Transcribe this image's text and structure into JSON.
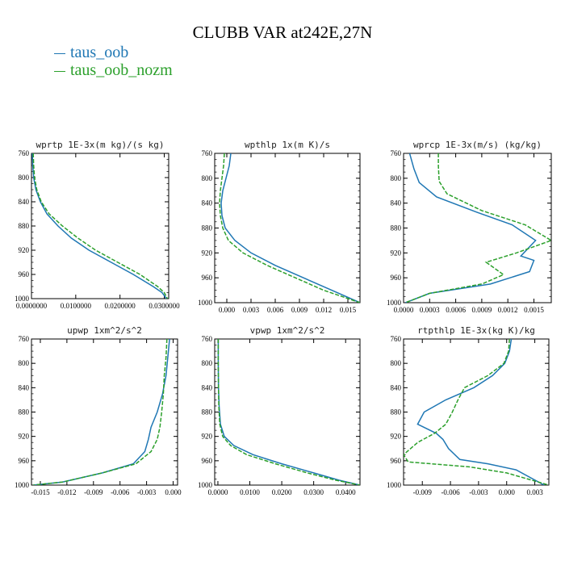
{
  "title": "CLUBB VAR at242E,27N",
  "legend": [
    {
      "label": "taus_oob",
      "color": "#1f77b4"
    },
    {
      "label": "taus_oob_nozm",
      "color": "#2ca02c"
    }
  ],
  "chart_data": [
    {
      "type": "line",
      "title": "wprtp  1E-3x(m kg)/(s kg)",
      "xlim": [
        0,
        0.031
      ],
      "ylim": [
        760,
        1000
      ],
      "y_reversed": true,
      "xticks": [
        0,
        0.01,
        0.02,
        0.03
      ],
      "xtick_labels": [
        "0.0000000",
        "0.0100000",
        "0.0200000",
        "0.0300000"
      ],
      "yticks": [
        760,
        800,
        840,
        880,
        920,
        960,
        1000
      ],
      "series": [
        {
          "name": "taus_oob",
          "x": [
            0.0002,
            0.0003,
            0.0005,
            0.001,
            0.002,
            0.0035,
            0.006,
            0.009,
            0.013,
            0.018,
            0.023,
            0.0275,
            0.0295,
            0.0305
          ],
          "y": [
            760,
            780,
            800,
            820,
            840,
            860,
            880,
            900,
            920,
            940,
            960,
            980,
            990,
            1000
          ]
        },
        {
          "name": "taus_oob_nozm",
          "x": [
            0.0004,
            0.0005,
            0.0007,
            0.0012,
            0.0022,
            0.004,
            0.007,
            0.0105,
            0.0145,
            0.0195,
            0.0245,
            0.0285,
            0.03,
            0.0307
          ],
          "y": [
            760,
            780,
            800,
            820,
            840,
            860,
            880,
            900,
            920,
            940,
            960,
            980,
            990,
            1000
          ]
        }
      ]
    },
    {
      "type": "line",
      "title": "wpthlp  1x(m K)/s",
      "xlim": [
        -0.0015,
        0.0165
      ],
      "ylim": [
        760,
        1000
      ],
      "y_reversed": true,
      "xticks": [
        0,
        0.003,
        0.006,
        0.009,
        0.012,
        0.015
      ],
      "xtick_labels": [
        "0.000",
        "0.003",
        "0.006",
        "0.009",
        "0.012",
        "0.015"
      ],
      "yticks": [
        760,
        800,
        840,
        880,
        920,
        960,
        1000
      ],
      "series": [
        {
          "name": "taus_oob",
          "x": [
            0.0005,
            0.0003,
            -0.0001,
            -0.0005,
            -0.0007,
            -0.0006,
            -0.0002,
            0.001,
            0.003,
            0.006,
            0.0095,
            0.013,
            0.0165
          ],
          "y": [
            760,
            780,
            800,
            820,
            840,
            860,
            880,
            900,
            920,
            940,
            960,
            980,
            1000
          ]
        },
        {
          "name": "taus_oob_nozm",
          "x": [
            -0.0003,
            -0.0004,
            -0.0006,
            -0.0008,
            -0.0009,
            -0.0008,
            -0.0005,
            0.0002,
            0.002,
            0.005,
            0.0085,
            0.012,
            0.0165
          ],
          "y": [
            760,
            780,
            800,
            820,
            840,
            860,
            880,
            900,
            920,
            940,
            960,
            980,
            1000
          ]
        }
      ]
    },
    {
      "type": "line",
      "title": "wprcp  1E-3x(m/s) (kg/kg)",
      "xlim": [
        0,
        0.0017
      ],
      "ylim": [
        760,
        1000
      ],
      "y_reversed": true,
      "xticks": [
        0,
        0.0003,
        0.0006,
        0.0009,
        0.0012,
        0.0015
      ],
      "xtick_labels": [
        "0.0000",
        "0.0003",
        "0.0006",
        "0.0009",
        "0.0012",
        "0.0015"
      ],
      "yticks": [
        760,
        800,
        840,
        880,
        920,
        960,
        1000
      ],
      "series": [
        {
          "name": "taus_oob",
          "x": [
            7e-05,
            0.00012,
            0.00018,
            0.00038,
            0.00085,
            0.00125,
            0.00152,
            0.00135,
            0.0015,
            0.00145,
            0.001,
            0.0003,
            2e-05
          ],
          "y": [
            760,
            785,
            807,
            830,
            855,
            875,
            900,
            925,
            932,
            950,
            970,
            985,
            1000
          ]
        },
        {
          "name": "taus_oob_nozm",
          "x": [
            0.0004,
            0.0004,
            0.00041,
            0.0005,
            0.0009,
            0.0014,
            0.0017,
            0.0013,
            0.00095,
            0.00115,
            0.0009,
            0.0003,
            2e-05
          ],
          "y": [
            760,
            780,
            805,
            825,
            852,
            875,
            900,
            920,
            935,
            955,
            970,
            985,
            1000
          ]
        }
      ]
    },
    {
      "type": "line",
      "title": "upwp  1xm^2/s^2",
      "xlim": [
        -0.016,
        0.0005
      ],
      "ylim": [
        760,
        1000
      ],
      "y_reversed": true,
      "xticks": [
        -0.015,
        -0.012,
        -0.009,
        -0.006,
        -0.003,
        0.0
      ],
      "xtick_labels": [
        "-0.015",
        "-0.012",
        "-0.009",
        "-0.006",
        "-0.003",
        "0.000"
      ],
      "yticks": [
        760,
        800,
        840,
        880,
        920,
        960,
        1000
      ],
      "series": [
        {
          "name": "taus_oob",
          "x": [
            -0.0004,
            -0.0006,
            -0.0008,
            -0.0012,
            -0.0018,
            -0.0025,
            -0.0028,
            -0.0032,
            -0.0045,
            -0.008,
            -0.0125,
            -0.0158
          ],
          "y": [
            760,
            790,
            820,
            850,
            880,
            905,
            925,
            945,
            965,
            980,
            995,
            1000
          ]
        },
        {
          "name": "taus_oob_nozm",
          "x": [
            -0.0007,
            -0.0008,
            -0.001,
            -0.0011,
            -0.0013,
            -0.0015,
            -0.0018,
            -0.0025,
            -0.0042,
            -0.008,
            -0.0125,
            -0.0158
          ],
          "y": [
            760,
            790,
            820,
            850,
            880,
            905,
            925,
            945,
            965,
            980,
            995,
            1000
          ]
        }
      ]
    },
    {
      "type": "line",
      "title": "vpwp  1xm^2/s^2",
      "xlim": [
        -0.001,
        0.0445
      ],
      "ylim": [
        760,
        1000
      ],
      "y_reversed": true,
      "xticks": [
        0,
        0.01,
        0.02,
        0.03,
        0.04
      ],
      "xtick_labels": [
        "0.0000",
        "0.0100",
        "0.0200",
        "0.0300",
        "0.0400"
      ],
      "yticks": [
        760,
        800,
        840,
        880,
        920,
        960,
        1000
      ],
      "series": [
        {
          "name": "taus_oob",
          "x": [
            0.0001,
            0.0001,
            0.0002,
            0.0004,
            0.0008,
            0.002,
            0.005,
            0.011,
            0.02,
            0.03,
            0.038,
            0.0445
          ],
          "y": [
            760,
            800,
            840,
            870,
            900,
            920,
            935,
            950,
            965,
            980,
            992,
            1000
          ]
        },
        {
          "name": "taus_oob_nozm",
          "x": [
            0.0001,
            0.0001,
            0.0002,
            0.0003,
            0.0006,
            0.0015,
            0.004,
            0.009,
            0.018,
            0.028,
            0.037,
            0.0445
          ],
          "y": [
            760,
            800,
            840,
            870,
            900,
            920,
            935,
            950,
            965,
            980,
            992,
            1000
          ]
        }
      ]
    },
    {
      "type": "line",
      "title": "rtpthlp  1E-3x(kg K)/kg",
      "xlim": [
        -0.011,
        0.0045
      ],
      "ylim": [
        760,
        1000
      ],
      "y_reversed": true,
      "xticks": [
        -0.009,
        -0.006,
        -0.003,
        0.0,
        0.003
      ],
      "xtick_labels": [
        "-0.009",
        "-0.006",
        "-0.003",
        "0.000",
        "0.003"
      ],
      "yticks": [
        760,
        800,
        840,
        880,
        920,
        960,
        1000
      ],
      "series": [
        {
          "name": "taus_oob",
          "x": [
            0.0005,
            0.0003,
            -0.0002,
            -0.0015,
            -0.0035,
            -0.0065,
            -0.0088,
            -0.0095,
            -0.0075,
            -0.0068,
            -0.0062,
            -0.005,
            -0.002,
            0.001,
            0.004
          ],
          "y": [
            760,
            780,
            800,
            820,
            840,
            860,
            880,
            900,
            915,
            925,
            940,
            958,
            965,
            975,
            1000
          ]
        },
        {
          "name": "taus_oob_nozm",
          "x": [
            0.0003,
            0.0002,
            -0.0003,
            -0.002,
            -0.0045,
            -0.0052,
            -0.0058,
            -0.0065,
            -0.0077,
            -0.0095,
            -0.011,
            -0.0105,
            -0.004,
            0.0,
            0.0045
          ],
          "y": [
            760,
            780,
            800,
            820,
            840,
            860,
            880,
            900,
            915,
            930,
            950,
            962,
            970,
            980,
            1000
          ]
        }
      ]
    }
  ]
}
